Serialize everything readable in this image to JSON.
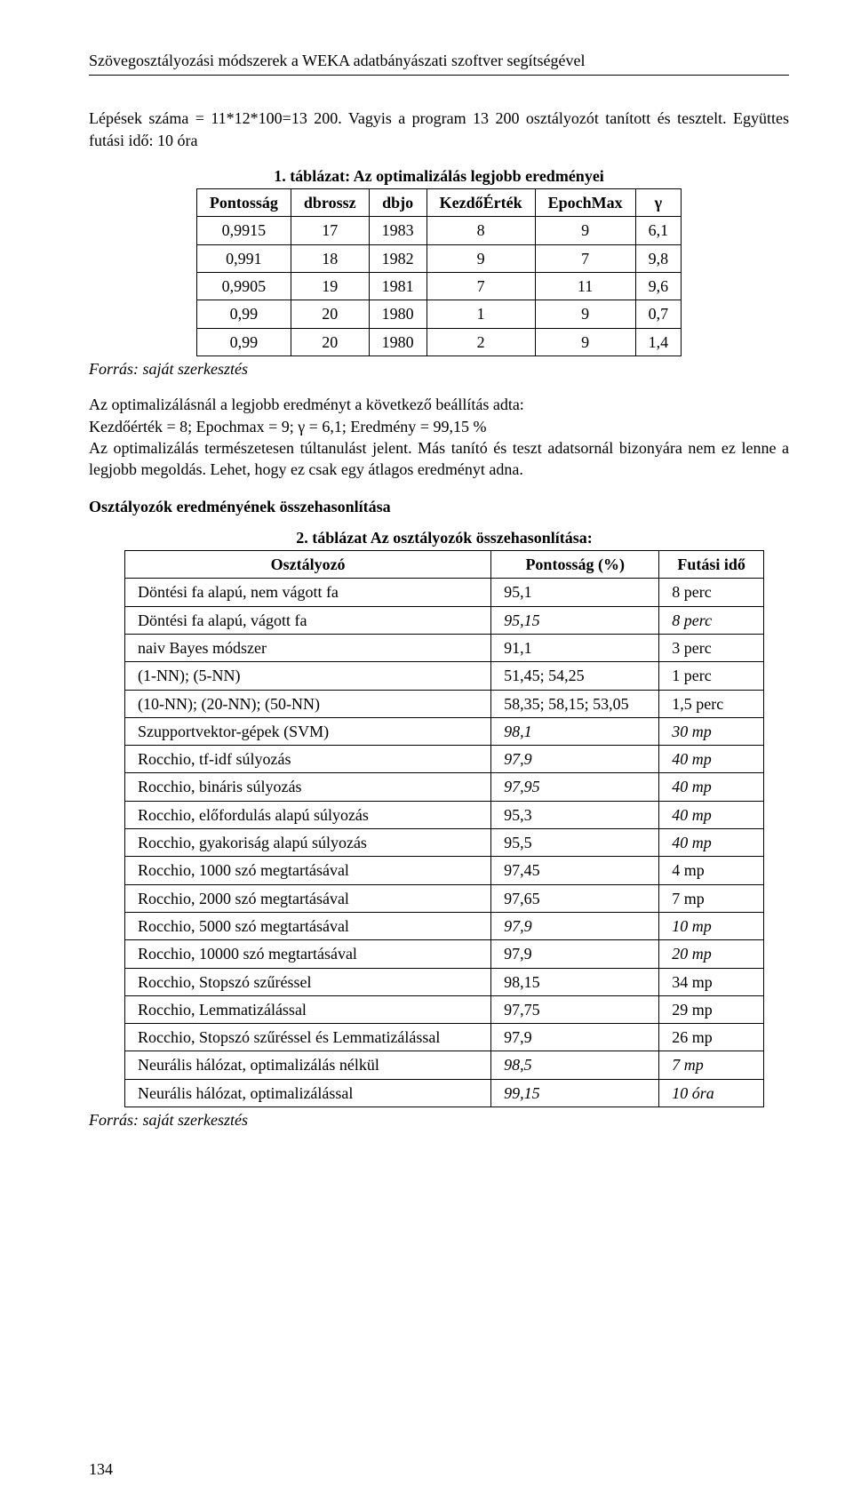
{
  "header": {
    "title": "Szövegosztályozási módszerek a WEKA adatbányászati szoftver segítségével"
  },
  "paras": {
    "intro1": "Lépések száma = 11*12*100=13 200. Vagyis a program 13 200 osztályozót tanított és tesztelt. Együttes futási idő: 10 óra",
    "t1_caption": "1. táblázat: Az optimalizálás legjobb eredményei",
    "source1": "Forrás: saját szerkesztés",
    "opt_result": "Az optimalizálásnál a legjobb eredményt a következő beállítás adta:\nKezdőérték = 8; Epochmax = 9; γ = 6,1; Eredmény = 99,15 %\nAz optimalizálás természetesen túltanulást jelent. Más tanító és teszt adatsornál bizonyára nem ez lenne a legjobb megoldás. Lehet, hogy ez csak egy átlagos eredményt adna.",
    "heading2": "Osztályozók eredményének összehasonlítása",
    "t2_caption": "2. táblázat Az osztályozók összehasonlítása:",
    "source2": "Forrás: saját szerkesztés",
    "page_number": "134"
  },
  "table1": {
    "columns": [
      "Pontosság",
      "dbrossz",
      "dbjo",
      "KezdőÉrték",
      "EpochMax",
      "γ"
    ],
    "rows": [
      [
        "0,9915",
        "17",
        "1983",
        "8",
        "9",
        "6,1"
      ],
      [
        "0,991",
        "18",
        "1982",
        "9",
        "7",
        "9,8"
      ],
      [
        "0,9905",
        "19",
        "1981",
        "7",
        "11",
        "9,6"
      ],
      [
        "0,99",
        "20",
        "1980",
        "1",
        "9",
        "0,7"
      ],
      [
        "0,99",
        "20",
        "1980",
        "2",
        "9",
        "1,4"
      ]
    ]
  },
  "table2": {
    "columns": [
      "Osztályozó",
      "Pontosság (%)",
      "Futási idő"
    ],
    "rows": [
      {
        "c": [
          "Döntési fa alapú, nem vágott fa",
          "95,1",
          "8 perc"
        ],
        "italic": [
          false,
          false,
          false
        ]
      },
      {
        "c": [
          "Döntési fa alapú, vágott fa",
          "95,15",
          "8 perc"
        ],
        "italic": [
          false,
          true,
          true
        ]
      },
      {
        "c": [
          "naiv Bayes módszer",
          "91,1",
          "3 perc"
        ],
        "italic": [
          false,
          false,
          false
        ]
      },
      {
        "c": [
          "(1-NN); (5-NN)",
          "51,45; 54,25",
          "1 perc"
        ],
        "italic": [
          false,
          false,
          false
        ]
      },
      {
        "c": [
          "(10-NN); (20-NN); (50-NN)",
          "58,35; 58,15; 53,05",
          "1,5 perc"
        ],
        "italic": [
          false,
          false,
          false
        ]
      },
      {
        "c": [
          "Szupportvektor-gépek (SVM)",
          "98,1",
          "30 mp"
        ],
        "italic": [
          false,
          true,
          true
        ]
      },
      {
        "c": [
          "Rocchio, tf-idf súlyozás",
          "97,9",
          "40 mp"
        ],
        "italic": [
          false,
          true,
          true
        ]
      },
      {
        "c": [
          "Rocchio, bináris súlyozás",
          "97,95",
          "40 mp"
        ],
        "italic": [
          false,
          true,
          true
        ]
      },
      {
        "c": [
          "Rocchio, előfordulás alapú súlyozás",
          "95,3",
          "40 mp"
        ],
        "italic": [
          false,
          false,
          true
        ]
      },
      {
        "c": [
          "Rocchio, gyakoriság alapú súlyozás",
          "95,5",
          "40 mp"
        ],
        "italic": [
          false,
          false,
          true
        ]
      },
      {
        "c": [
          "Rocchio, 1000 szó megtartásával",
          "97,45",
          "4 mp"
        ],
        "italic": [
          false,
          false,
          false
        ]
      },
      {
        "c": [
          "Rocchio, 2000 szó megtartásával",
          "97,65",
          "7 mp"
        ],
        "italic": [
          false,
          false,
          false
        ]
      },
      {
        "c": [
          "Rocchio, 5000 szó megtartásával",
          "97,9",
          "10 mp"
        ],
        "italic": [
          false,
          true,
          true
        ]
      },
      {
        "c": [
          "Rocchio, 10000 szó megtartásával",
          "97,9",
          "20 mp"
        ],
        "italic": [
          false,
          false,
          true
        ]
      },
      {
        "c": [
          "Rocchio, Stopszó szűréssel",
          "98,15",
          "34 mp"
        ],
        "italic": [
          false,
          false,
          false
        ]
      },
      {
        "c": [
          "Rocchio, Lemmatizálással",
          "97,75",
          "29 mp"
        ],
        "italic": [
          false,
          false,
          false
        ]
      },
      {
        "c": [
          "Rocchio, Stopszó szűréssel és Lemmatizálással",
          "97,9",
          "26 mp"
        ],
        "italic": [
          false,
          false,
          false
        ]
      },
      {
        "c": [
          "Neurális hálózat, optimalizálás nélkül",
          "98,5",
          "7 mp"
        ],
        "italic": [
          false,
          true,
          true
        ]
      },
      {
        "c": [
          "Neurális hálózat, optimalizálással",
          "99,15",
          "10 óra"
        ],
        "italic": [
          false,
          true,
          true
        ]
      }
    ]
  }
}
